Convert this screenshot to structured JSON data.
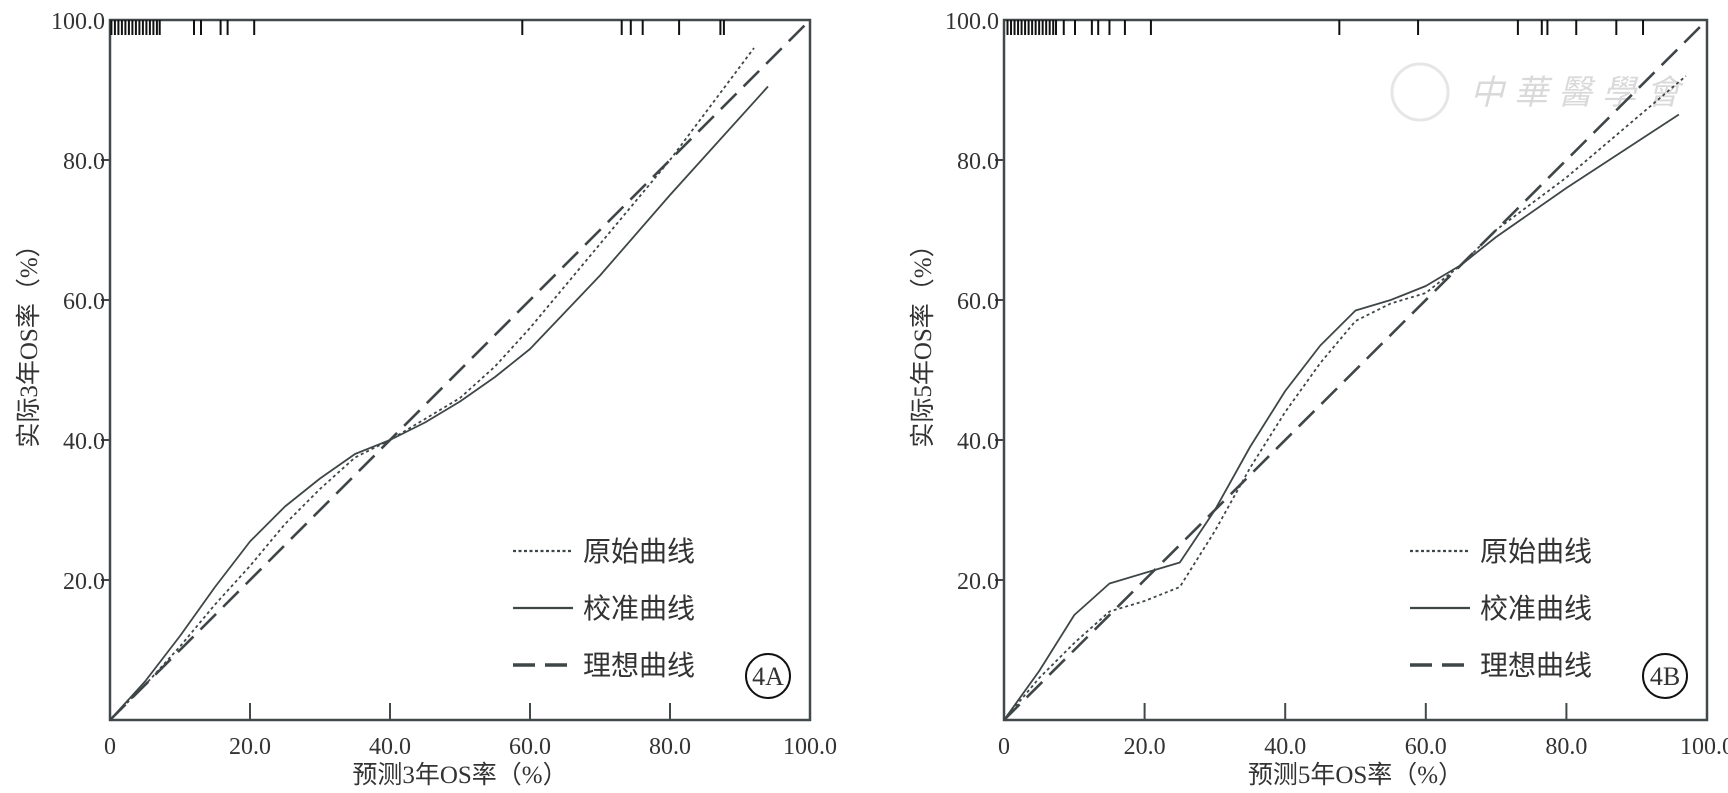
{
  "chart_data": [
    {
      "type": "line",
      "panel_label": "4A",
      "xlabel": "预测3年OS率（%）",
      "ylabel": "实际3年OS率（%）",
      "xlim": [
        0,
        100
      ],
      "ylim": [
        0,
        100
      ],
      "xticks": [
        "0",
        "20.0",
        "40.0",
        "60.0",
        "80.0",
        "100.0"
      ],
      "yticks": [
        "20.0",
        "40.0",
        "60.0",
        "80.0",
        "100.0"
      ],
      "legend_position": "bottom-right",
      "series": [
        {
          "name": "原始曲线",
          "style": "dotted",
          "x": [
            0,
            5,
            10,
            15,
            20,
            25,
            30,
            35,
            40,
            45,
            50,
            55,
            60,
            70,
            80,
            92
          ],
          "y": [
            0,
            5,
            10.5,
            16.5,
            22,
            28,
            33,
            37.5,
            40,
            43,
            46,
            50.5,
            56,
            68,
            80,
            96
          ]
        },
        {
          "name": "校准曲线",
          "style": "solid",
          "x": [
            0,
            5,
            10,
            15,
            20,
            25,
            30,
            35,
            40,
            45,
            50,
            55,
            60,
            70,
            80,
            94
          ],
          "y": [
            0,
            5.5,
            12,
            19,
            25.5,
            30.5,
            34.5,
            38,
            40,
            42.5,
            45.5,
            49,
            53,
            63.5,
            75,
            90.5
          ]
        },
        {
          "name": "理想曲线",
          "style": "dashed",
          "x": [
            0,
            100
          ],
          "y": [
            0,
            100
          ]
        }
      ],
      "rug": [
        0.2,
        0.7,
        1.2,
        1.7,
        2.2,
        2.7,
        3.2,
        3.7,
        4.2,
        4.7,
        5.2,
        5.7,
        6.2,
        6.7,
        7.1,
        12.0,
        13.0,
        15.8,
        16.8,
        20.6,
        58.9,
        73.1,
        74.4,
        76.1,
        81.3,
        87.2,
        87.7
      ]
    },
    {
      "type": "line",
      "panel_label": "4B",
      "xlabel": "预测5年OS率（%）",
      "ylabel": "实际5年OS率（%）",
      "xlim": [
        0,
        100
      ],
      "ylim": [
        0,
        100
      ],
      "xticks": [
        "0",
        "20.0",
        "40.0",
        "60.0",
        "80.0",
        "100.0"
      ],
      "yticks": [
        "20.0",
        "40.0",
        "60.0",
        "80.0",
        "100.0"
      ],
      "legend_position": "bottom-right",
      "series": [
        {
          "name": "原始曲线",
          "style": "dotted",
          "x": [
            0,
            5,
            10,
            15,
            20,
            25,
            30,
            35,
            40,
            45,
            50,
            55,
            60,
            65,
            70,
            80,
            97
          ],
          "y": [
            0,
            6,
            11,
            15.5,
            17,
            19,
            27,
            36,
            44,
            51,
            57,
            59.5,
            61,
            65,
            70,
            77.5,
            92
          ]
        },
        {
          "name": "校准曲线",
          "style": "solid",
          "x": [
            0,
            5,
            10,
            15,
            20,
            25,
            30,
            35,
            40,
            45,
            50,
            55,
            60,
            65,
            70,
            80,
            96
          ],
          "y": [
            0,
            7,
            15,
            19.5,
            21,
            22.5,
            30,
            39,
            47,
            53.5,
            58.5,
            60,
            62,
            65,
            69,
            76,
            86.5
          ]
        },
        {
          "name": "理想曲线",
          "style": "dashed",
          "x": [
            0,
            100
          ],
          "y": [
            0,
            100
          ]
        }
      ],
      "rug": [
        0.5,
        1.0,
        1.5,
        2.0,
        2.5,
        3.0,
        3.5,
        4.0,
        4.5,
        5.0,
        5.5,
        6.0,
        6.5,
        7.0,
        7.4,
        8.5,
        10.1,
        12.5,
        13.4,
        15.0,
        17.2,
        20.9,
        47.7,
        58.9,
        73.1,
        76.5,
        77.3,
        81.4,
        87.1,
        90.9
      ],
      "watermark": "中華醫學會"
    }
  ],
  "colors": {
    "axis": "#42494b",
    "line": "#3f4648",
    "rug": "#111111"
  }
}
